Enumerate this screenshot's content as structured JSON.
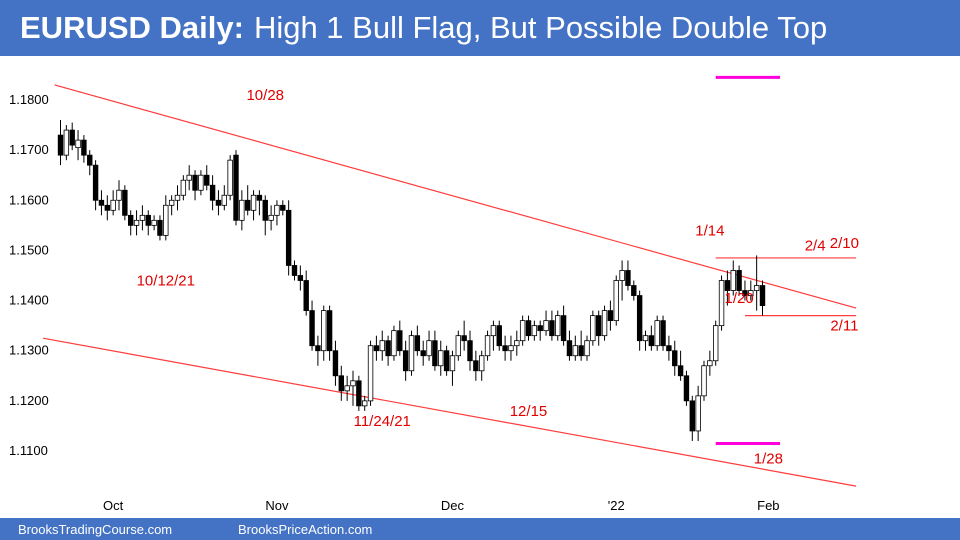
{
  "title": {
    "bold": "EURUSD Daily:",
    "rest": "High 1 Bull Flag, But Possible Double Top"
  },
  "footer": {
    "left": "BrooksTradingCourse.com",
    "right": "BrooksPriceAction.com"
  },
  "colors": {
    "banner": "#4472c4",
    "trendline": "#ff3b3b",
    "magenta": "#ff00dd",
    "bear": "#000000",
    "bull": "#ffffff"
  },
  "chart_data": {
    "type": "candlestick",
    "title": "EURUSD Daily: High 1 Bull Flag, But Possible Double Top",
    "y_ticks": [
      "1.1800",
      "1.1700",
      "1.1600",
      "1.1500",
      "1.1400",
      "1.1300",
      "1.1200",
      "1.1100"
    ],
    "ylim": [
      1.1035,
      1.187
    ],
    "x_ticks": [
      {
        "label": "Oct",
        "index": 9
      },
      {
        "label": "Nov",
        "index": 37
      },
      {
        "label": "Dec",
        "index": 67
      },
      {
        "label": "'22",
        "index": 95
      },
      {
        "label": "Feb",
        "index": 121
      }
    ],
    "grid": false,
    "candles": [
      [
        1.173,
        1.176,
        1.167,
        1.169
      ],
      [
        1.169,
        1.175,
        1.168,
        1.174
      ],
      [
        1.174,
        1.1755,
        1.17,
        1.171
      ],
      [
        1.1705,
        1.174,
        1.168,
        1.172
      ],
      [
        1.172,
        1.173,
        1.1675,
        1.169
      ],
      [
        1.169,
        1.17,
        1.165,
        1.167
      ],
      [
        1.167,
        1.168,
        1.158,
        1.16
      ],
      [
        1.16,
        1.162,
        1.157,
        1.159
      ],
      [
        1.159,
        1.161,
        1.156,
        1.158
      ],
      [
        1.158,
        1.162,
        1.157,
        1.16
      ],
      [
        1.16,
        1.164,
        1.158,
        1.162
      ],
      [
        1.162,
        1.163,
        1.156,
        1.157
      ],
      [
        1.157,
        1.158,
        1.153,
        1.155
      ],
      [
        1.155,
        1.158,
        1.153,
        1.156
      ],
      [
        1.156,
        1.159,
        1.154,
        1.157
      ],
      [
        1.157,
        1.158,
        1.153,
        1.155
      ],
      [
        1.155,
        1.157,
        1.154,
        1.156
      ],
      [
        1.156,
        1.157,
        1.152,
        1.153
      ],
      [
        1.153,
        1.161,
        1.152,
        1.159
      ],
      [
        1.159,
        1.161,
        1.157,
        1.16
      ],
      [
        1.16,
        1.163,
        1.158,
        1.161
      ],
      [
        1.161,
        1.165,
        1.16,
        1.164
      ],
      [
        1.164,
        1.167,
        1.162,
        1.165
      ],
      [
        1.165,
        1.166,
        1.16,
        1.162
      ],
      [
        1.162,
        1.166,
        1.161,
        1.165
      ],
      [
        1.165,
        1.167,
        1.162,
        1.163
      ],
      [
        1.163,
        1.165,
        1.158,
        1.16
      ],
      [
        1.16,
        1.162,
        1.157,
        1.159
      ],
      [
        1.159,
        1.163,
        1.158,
        1.161
      ],
      [
        1.161,
        1.169,
        1.16,
        1.168
      ],
      [
        1.169,
        1.17,
        1.155,
        1.156
      ],
      [
        1.156,
        1.162,
        1.154,
        1.16
      ],
      [
        1.16,
        1.163,
        1.157,
        1.158
      ],
      [
        1.158,
        1.162,
        1.156,
        1.161
      ],
      [
        1.161,
        1.162,
        1.157,
        1.16
      ],
      [
        1.16,
        1.161,
        1.153,
        1.156
      ],
      [
        1.156,
        1.159,
        1.154,
        1.157
      ],
      [
        1.157,
        1.16,
        1.155,
        1.159
      ],
      [
        1.159,
        1.16,
        1.157,
        1.158
      ],
      [
        1.158,
        1.16,
        1.145,
        1.147
      ],
      [
        1.147,
        1.148,
        1.144,
        1.145
      ],
      [
        1.145,
        1.147,
        1.142,
        1.144
      ],
      [
        1.144,
        1.146,
        1.137,
        1.138
      ],
      [
        1.138,
        1.14,
        1.13,
        1.131
      ],
      [
        1.131,
        1.133,
        1.127,
        1.13
      ],
      [
        1.13,
        1.139,
        1.128,
        1.138
      ],
      [
        1.138,
        1.139,
        1.128,
        1.13
      ],
      [
        1.13,
        1.132,
        1.123,
        1.125
      ],
      [
        1.125,
        1.127,
        1.12,
        1.122
      ],
      [
        1.122,
        1.125,
        1.12,
        1.123
      ],
      [
        1.123,
        1.126,
        1.119,
        1.124
      ],
      [
        1.124,
        1.125,
        1.118,
        1.119
      ],
      [
        1.119,
        1.121,
        1.118,
        1.12
      ],
      [
        1.12,
        1.132,
        1.119,
        1.131
      ],
      [
        1.131,
        1.133,
        1.128,
        1.13
      ],
      [
        1.13,
        1.134,
        1.128,
        1.132
      ],
      [
        1.132,
        1.133,
        1.127,
        1.129
      ],
      [
        1.129,
        1.135,
        1.128,
        1.134
      ],
      [
        1.134,
        1.136,
        1.129,
        1.13
      ],
      [
        1.13,
        1.132,
        1.124,
        1.126
      ],
      [
        1.126,
        1.134,
        1.125,
        1.133
      ],
      [
        1.133,
        1.135,
        1.129,
        1.13
      ],
      [
        1.13,
        1.132,
        1.127,
        1.129
      ],
      [
        1.129,
        1.134,
        1.128,
        1.132
      ],
      [
        1.132,
        1.134,
        1.126,
        1.127
      ],
      [
        1.127,
        1.132,
        1.125,
        1.13
      ],
      [
        1.13,
        1.131,
        1.125,
        1.126
      ],
      [
        1.126,
        1.13,
        1.123,
        1.129
      ],
      [
        1.129,
        1.134,
        1.128,
        1.133
      ],
      [
        1.133,
        1.136,
        1.13,
        1.132
      ],
      [
        1.132,
        1.134,
        1.126,
        1.128
      ],
      [
        1.128,
        1.13,
        1.124,
        1.126
      ],
      [
        1.126,
        1.13,
        1.124,
        1.129
      ],
      [
        1.129,
        1.134,
        1.128,
        1.133
      ],
      [
        1.133,
        1.136,
        1.13,
        1.135
      ],
      [
        1.135,
        1.136,
        1.13,
        1.131
      ],
      [
        1.131,
        1.133,
        1.128,
        1.13
      ],
      [
        1.13,
        1.133,
        1.128,
        1.131
      ],
      [
        1.131,
        1.134,
        1.129,
        1.132
      ],
      [
        1.132,
        1.137,
        1.131,
        1.136
      ],
      [
        1.136,
        1.137,
        1.132,
        1.133
      ],
      [
        1.133,
        1.136,
        1.132,
        1.135
      ],
      [
        1.135,
        1.136,
        1.132,
        1.134
      ],
      [
        1.134,
        1.138,
        1.133,
        1.136
      ],
      [
        1.136,
        1.138,
        1.132,
        1.133
      ],
      [
        1.133,
        1.138,
        1.132,
        1.137
      ],
      [
        1.137,
        1.139,
        1.131,
        1.132
      ],
      [
        1.132,
        1.134,
        1.128,
        1.129
      ],
      [
        1.129,
        1.133,
        1.128,
        1.131
      ],
      [
        1.131,
        1.134,
        1.128,
        1.129
      ],
      [
        1.129,
        1.133,
        1.128,
        1.132
      ],
      [
        1.132,
        1.138,
        1.131,
        1.137
      ],
      [
        1.137,
        1.138,
        1.131,
        1.133
      ],
      [
        1.133,
        1.139,
        1.132,
        1.138
      ],
      [
        1.138,
        1.14,
        1.134,
        1.136
      ],
      [
        1.136,
        1.145,
        1.135,
        1.144
      ],
      [
        1.144,
        1.148,
        1.14,
        1.146
      ],
      [
        1.146,
        1.148,
        1.142,
        1.143
      ],
      [
        1.143,
        1.144,
        1.14,
        1.141
      ],
      [
        1.141,
        1.142,
        1.13,
        1.132
      ],
      [
        1.132,
        1.134,
        1.13,
        1.133
      ],
      [
        1.133,
        1.135,
        1.13,
        1.131
      ],
      [
        1.131,
        1.137,
        1.13,
        1.136
      ],
      [
        1.136,
        1.137,
        1.13,
        1.131
      ],
      [
        1.131,
        1.133,
        1.128,
        1.13
      ],
      [
        1.13,
        1.132,
        1.125,
        1.127
      ],
      [
        1.127,
        1.13,
        1.124,
        1.125
      ],
      [
        1.125,
        1.126,
        1.119,
        1.12
      ],
      [
        1.12,
        1.121,
        1.112,
        1.114
      ],
      [
        1.114,
        1.123,
        1.112,
        1.121
      ],
      [
        1.121,
        1.128,
        1.12,
        1.127
      ],
      [
        1.127,
        1.13,
        1.125,
        1.128
      ],
      [
        1.128,
        1.136,
        1.127,
        1.135
      ],
      [
        1.135,
        1.145,
        1.134,
        1.144
      ],
      [
        1.144,
        1.146,
        1.139,
        1.142
      ],
      [
        1.142,
        1.148,
        1.141,
        1.146
      ],
      [
        1.146,
        1.147,
        1.141,
        1.142
      ],
      [
        1.142,
        1.144,
        1.14,
        1.141
      ],
      [
        1.141,
        1.144,
        1.14,
        1.142
      ],
      [
        1.142,
        1.149,
        1.138,
        1.143
      ],
      [
        1.143,
        1.144,
        1.137,
        1.139
      ]
    ],
    "trendlines": [
      {
        "from": [
          -1,
          1.183
        ],
        "to": [
          136,
          1.1385
        ]
      },
      {
        "from": [
          -3,
          1.1325
        ],
        "to": [
          136,
          1.103
        ]
      },
      {
        "from": [
          112,
          1.1485
        ],
        "to": [
          136,
          1.1485
        ]
      },
      {
        "from": [
          117,
          1.137
        ],
        "to": [
          136,
          1.137
        ]
      }
    ],
    "magenta_levels": [
      {
        "from": [
          112,
          1.1845
        ],
        "to": [
          123,
          1.1845
        ]
      },
      {
        "from": [
          112,
          1.1115
        ],
        "to": [
          123,
          1.1115
        ]
      }
    ],
    "annotations": [
      {
        "text": "10/28",
        "index": 35,
        "price": 1.18
      },
      {
        "text": "10/12/21",
        "index": 18,
        "price": 1.143
      },
      {
        "text": "11/24/21",
        "index": 55,
        "price": 1.115
      },
      {
        "text": "12/15",
        "index": 80,
        "price": 1.117
      },
      {
        "text": "1/14",
        "index": 111,
        "price": 1.153
      },
      {
        "text": "1/20",
        "index": 116,
        "price": 1.1395
      },
      {
        "text": "2/4",
        "index": 129,
        "price": 1.15
      },
      {
        "text": "2/10",
        "index": 134,
        "price": 1.1505
      },
      {
        "text": "2/11",
        "index": 134,
        "price": 1.134
      },
      {
        "text": "1/28",
        "index": 121,
        "price": 1.1075
      }
    ]
  }
}
